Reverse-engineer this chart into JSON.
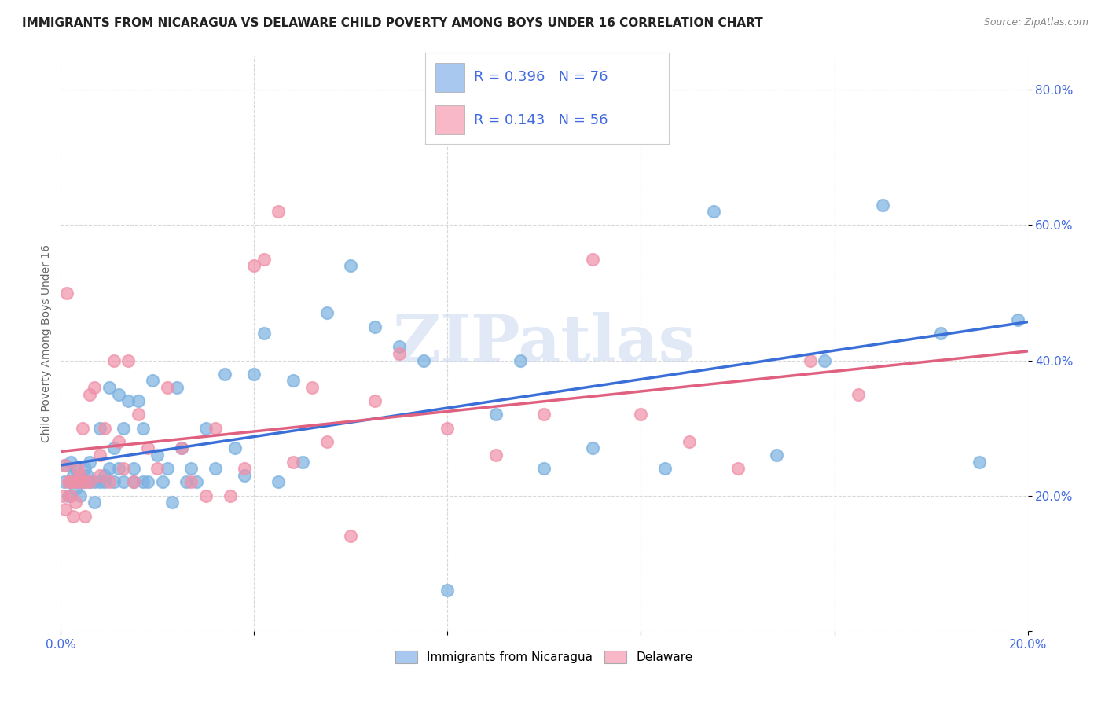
{
  "title": "IMMIGRANTS FROM NICARAGUA VS DELAWARE CHILD POVERTY AMONG BOYS UNDER 16 CORRELATION CHART",
  "source": "Source: ZipAtlas.com",
  "ylabel": "Child Poverty Among Boys Under 16",
  "xlim": [
    0.0,
    0.2
  ],
  "ylim": [
    0.0,
    0.85
  ],
  "legend_label1": "R = 0.396   N = 76",
  "legend_label2": "R = 0.143   N = 56",
  "legend_color1": "#a8c8f0",
  "legend_color2": "#f8b8c8",
  "scatter_color1": "#7ab0e0",
  "scatter_color2": "#f090a8",
  "line_color1": "#3a6fd8",
  "line_color2": "#e06080",
  "watermark": "ZIPatlas",
  "title_fontsize": 11,
  "source_fontsize": 9,
  "axis_label_fontsize": 10,
  "tick_fontsize": 11,
  "legend_fontsize": 13,
  "background_color": "#ffffff",
  "grid_color": "#d8d8d8",
  "tick_color": "#4169e1",
  "blue_scatter_x": [
    0.0008,
    0.001,
    0.0015,
    0.002,
    0.002,
    0.0025,
    0.003,
    0.003,
    0.0035,
    0.004,
    0.004,
    0.0045,
    0.005,
    0.005,
    0.0055,
    0.006,
    0.006,
    0.007,
    0.007,
    0.008,
    0.008,
    0.009,
    0.009,
    0.01,
    0.01,
    0.011,
    0.011,
    0.012,
    0.012,
    0.013,
    0.013,
    0.014,
    0.015,
    0.015,
    0.016,
    0.017,
    0.017,
    0.018,
    0.019,
    0.02,
    0.021,
    0.022,
    0.023,
    0.024,
    0.025,
    0.026,
    0.027,
    0.028,
    0.03,
    0.032,
    0.034,
    0.036,
    0.038,
    0.04,
    0.042,
    0.045,
    0.048,
    0.05,
    0.055,
    0.06,
    0.065,
    0.07,
    0.075,
    0.08,
    0.09,
    0.095,
    0.1,
    0.11,
    0.125,
    0.135,
    0.148,
    0.158,
    0.17,
    0.182,
    0.19,
    0.198
  ],
  "blue_scatter_y": [
    0.22,
    0.245,
    0.2,
    0.25,
    0.22,
    0.23,
    0.24,
    0.21,
    0.22,
    0.23,
    0.2,
    0.22,
    0.24,
    0.22,
    0.23,
    0.25,
    0.22,
    0.22,
    0.19,
    0.3,
    0.22,
    0.22,
    0.23,
    0.36,
    0.24,
    0.27,
    0.22,
    0.35,
    0.24,
    0.3,
    0.22,
    0.34,
    0.24,
    0.22,
    0.34,
    0.3,
    0.22,
    0.22,
    0.37,
    0.26,
    0.22,
    0.24,
    0.19,
    0.36,
    0.27,
    0.22,
    0.24,
    0.22,
    0.3,
    0.24,
    0.38,
    0.27,
    0.23,
    0.38,
    0.44,
    0.22,
    0.37,
    0.25,
    0.47,
    0.54,
    0.45,
    0.42,
    0.4,
    0.06,
    0.32,
    0.4,
    0.24,
    0.27,
    0.24,
    0.62,
    0.26,
    0.4,
    0.63,
    0.44,
    0.25,
    0.46
  ],
  "pink_scatter_x": [
    0.0005,
    0.0008,
    0.001,
    0.0012,
    0.0015,
    0.002,
    0.002,
    0.0025,
    0.003,
    0.003,
    0.0035,
    0.004,
    0.004,
    0.0045,
    0.005,
    0.005,
    0.006,
    0.006,
    0.007,
    0.008,
    0.008,
    0.009,
    0.01,
    0.011,
    0.012,
    0.013,
    0.014,
    0.015,
    0.016,
    0.018,
    0.02,
    0.022,
    0.025,
    0.027,
    0.03,
    0.032,
    0.035,
    0.038,
    0.04,
    0.042,
    0.045,
    0.048,
    0.052,
    0.055,
    0.06,
    0.065,
    0.07,
    0.08,
    0.09,
    0.1,
    0.11,
    0.12,
    0.13,
    0.14,
    0.155,
    0.165
  ],
  "pink_scatter_y": [
    0.2,
    0.245,
    0.18,
    0.5,
    0.22,
    0.2,
    0.22,
    0.17,
    0.19,
    0.22,
    0.24,
    0.23,
    0.22,
    0.3,
    0.22,
    0.17,
    0.22,
    0.35,
    0.36,
    0.23,
    0.26,
    0.3,
    0.22,
    0.4,
    0.28,
    0.24,
    0.4,
    0.22,
    0.32,
    0.27,
    0.24,
    0.36,
    0.27,
    0.22,
    0.2,
    0.3,
    0.2,
    0.24,
    0.54,
    0.55,
    0.62,
    0.25,
    0.36,
    0.28,
    0.14,
    0.34,
    0.41,
    0.3,
    0.26,
    0.32,
    0.55,
    0.32,
    0.28,
    0.24,
    0.4,
    0.35
  ]
}
